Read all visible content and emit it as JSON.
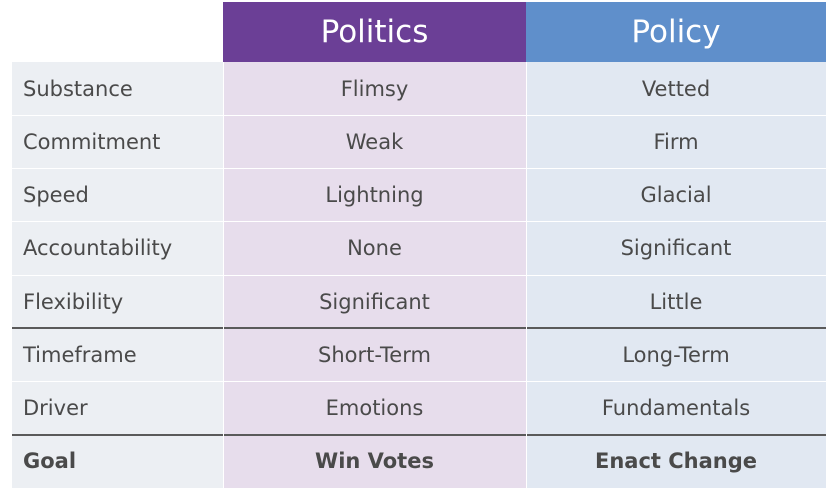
{
  "table": {
    "header": [
      "Politics",
      "Policy"
    ],
    "rows": [
      [
        "Substance",
        "Flimsy",
        "Vetted"
      ],
      [
        "Commitment",
        "Weak",
        "Firm"
      ],
      [
        "Speed",
        "Lightning",
        "Glacial"
      ],
      [
        "Accountability",
        "None",
        "Significant"
      ],
      [
        "Flexibility",
        "Significant",
        "Little"
      ],
      [
        "Timeframe",
        "Short-Term",
        "Long-Term"
      ],
      [
        "Driver",
        "Emotions",
        "Fundamentals"
      ],
      [
        "Goal",
        "Win Votes",
        "Enact Change"
      ]
    ]
  }
}
